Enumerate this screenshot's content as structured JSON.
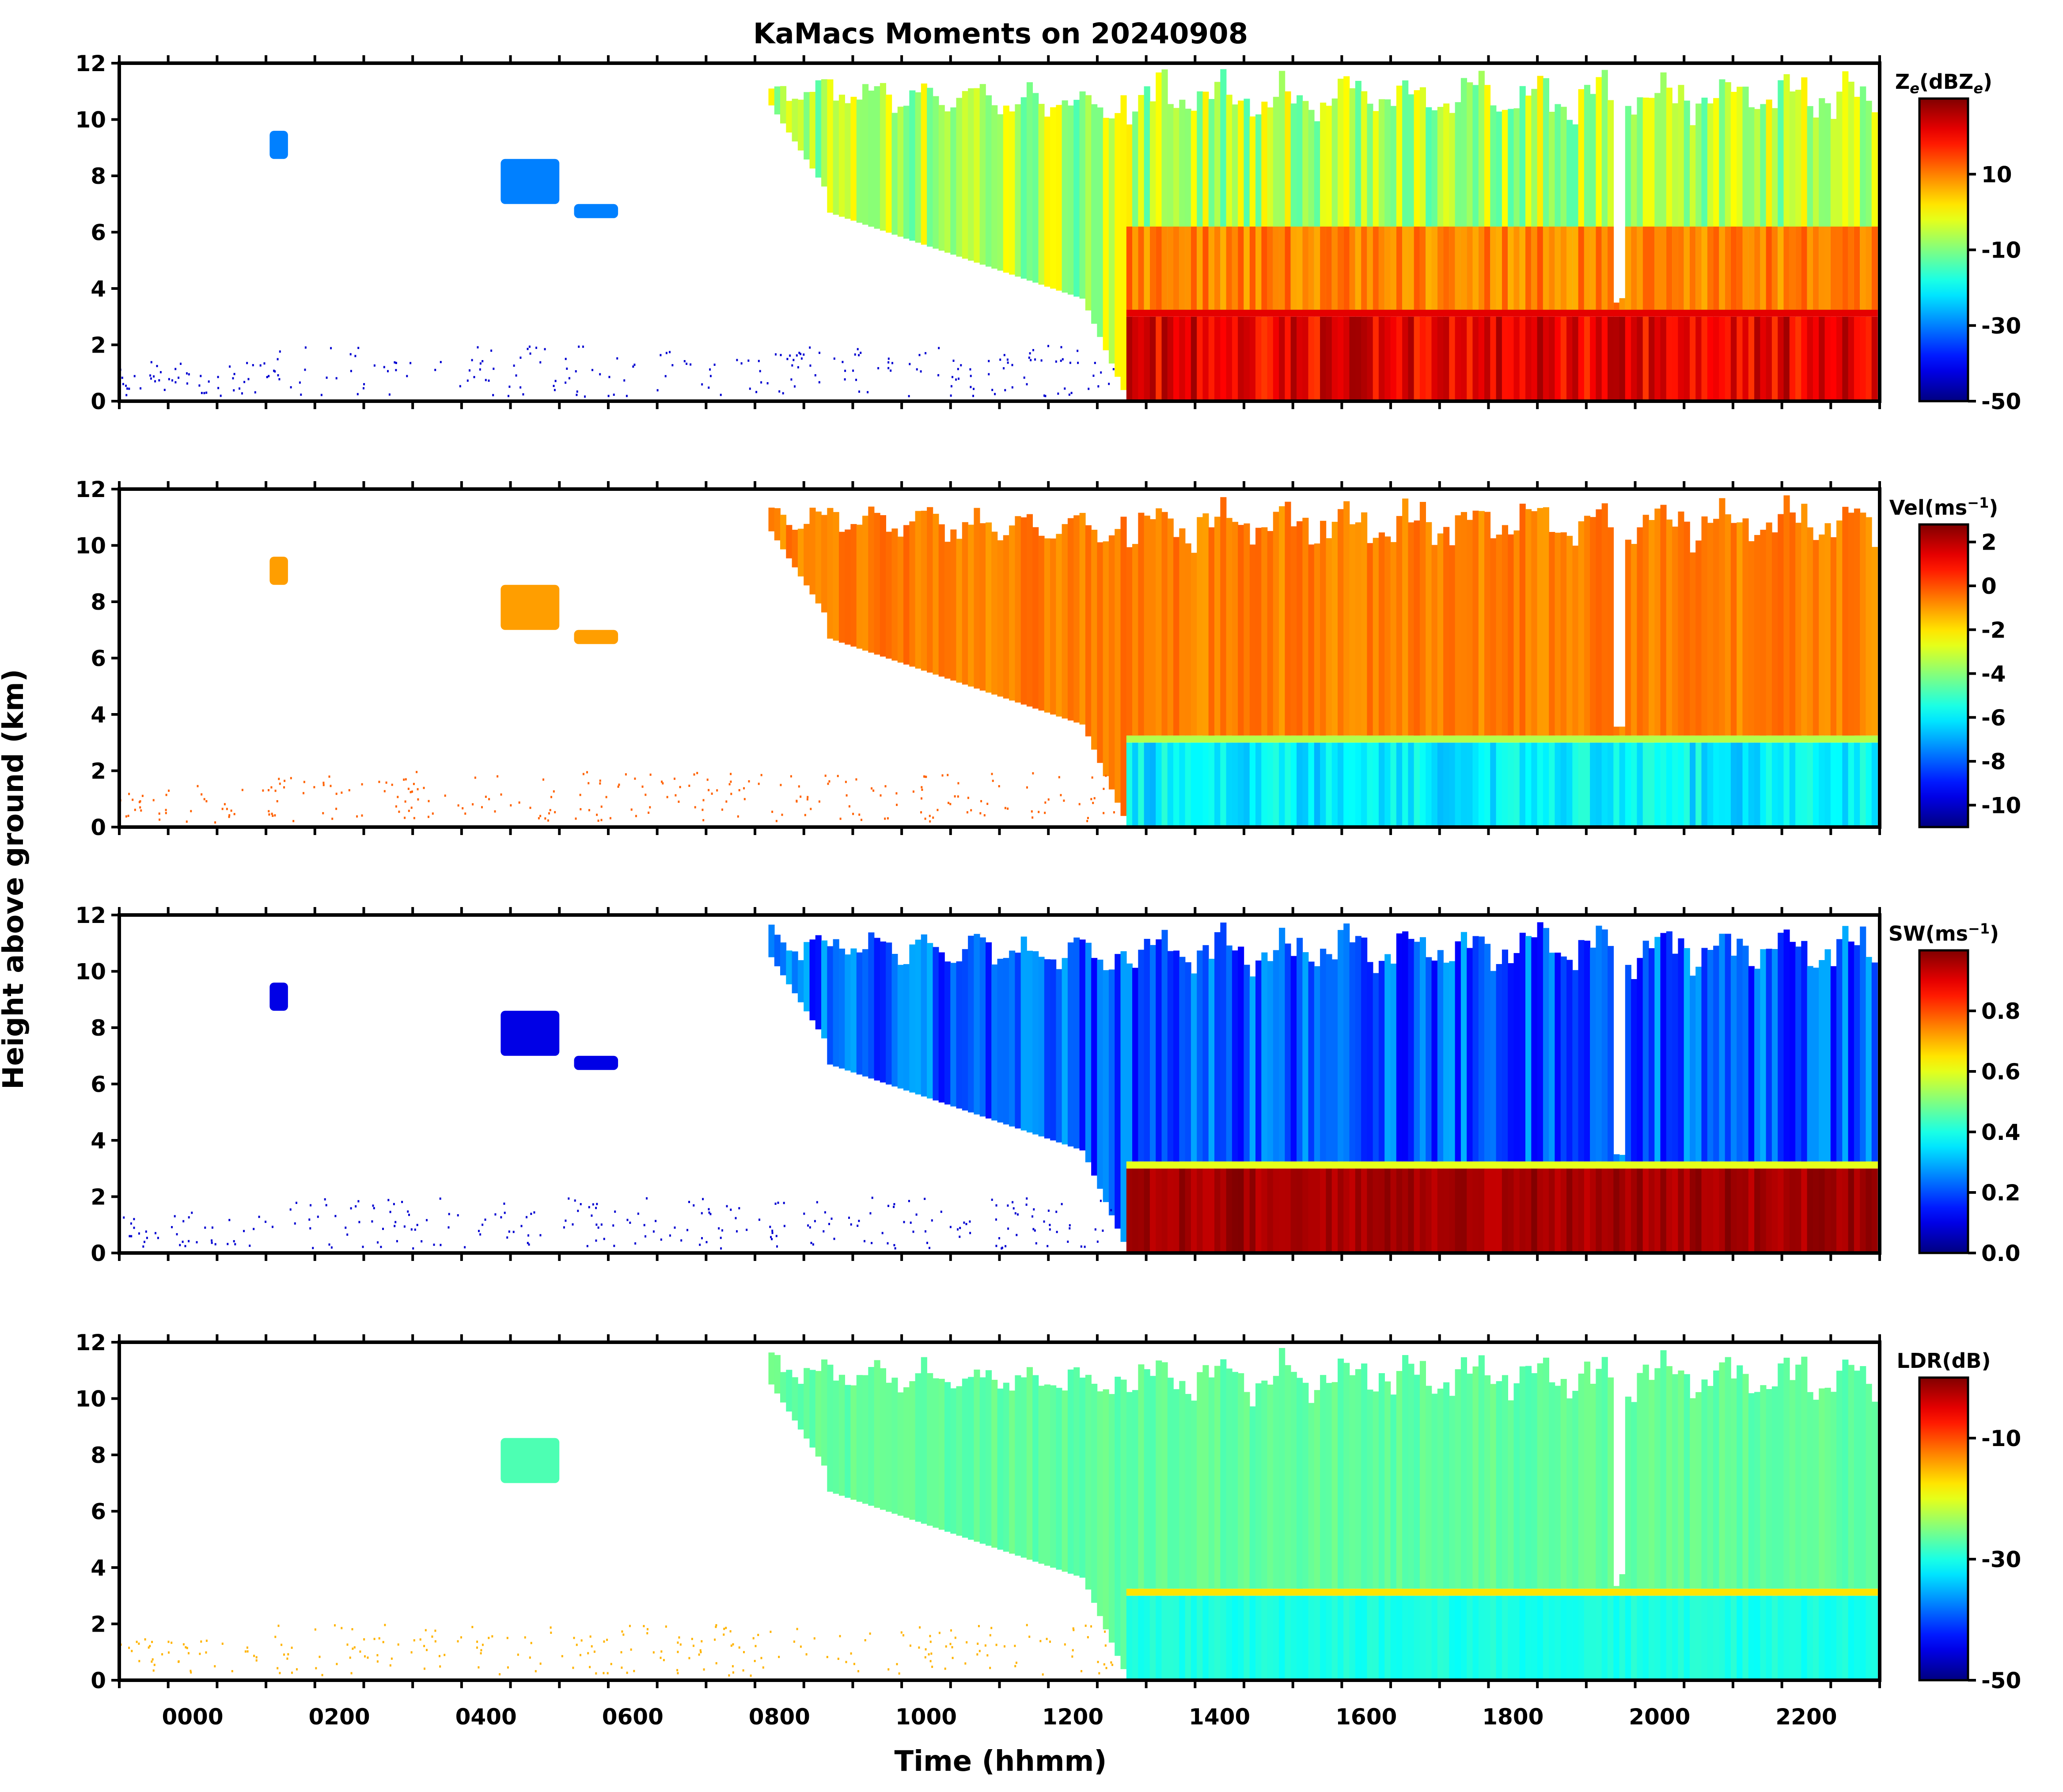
{
  "title": "KaMacs Moments on 20240908",
  "shared_ylabel": "Height above ground (km)",
  "xlabel": "Time (hhmm)",
  "chart_data": [
    {
      "type": "heatmap",
      "panel": "reflectivity",
      "colorbar_label": "Ze(dBZe)",
      "colorbar_label_main": "Z",
      "colorbar_label_sub": "e",
      "colorbar_label_rest": "(dBZ",
      "colorbar_label_sub2": "e",
      "colorbar_label_end": ")",
      "vmin": -50,
      "vmax": 30,
      "cbar_ticks": [
        10,
        -10,
        -30,
        -50
      ],
      "cbar_tick_labels": [
        "10",
        "-10",
        "-30",
        "-50"
      ],
      "ylim": [
        0,
        12
      ],
      "yticks": [
        0,
        2,
        4,
        6,
        8,
        10,
        12
      ],
      "ytick_labels": [
        "0",
        "2",
        "4",
        "6",
        "8",
        "10",
        "12"
      ],
      "features": {
        "melting_layer_km": 3.0,
        "cloud_top_km": 11,
        "rain_onset_hhmm": "1245"
      }
    },
    {
      "type": "heatmap",
      "panel": "velocity",
      "colorbar_label": "Vel(ms-1)",
      "colorbar_label_main": "Vel(ms",
      "colorbar_label_sup": "−1",
      "colorbar_label_end": ")",
      "vmin": -11,
      "vmax": 2.8,
      "cbar_ticks": [
        2,
        0,
        -2,
        -4,
        -6,
        -8,
        -10
      ],
      "cbar_tick_labels": [
        "2",
        "0",
        "-2",
        "-4",
        "-6",
        "-8",
        "-10"
      ],
      "ylim": [
        0,
        12
      ],
      "yticks": [
        0,
        2,
        4,
        6,
        8,
        10,
        12
      ],
      "ytick_labels": [
        "0",
        "2",
        "4",
        "6",
        "8",
        "10",
        "12"
      ],
      "features": {
        "ice_velocity": 0.3,
        "rain_velocity": -6.5
      }
    },
    {
      "type": "heatmap",
      "panel": "spectrum_width",
      "colorbar_label": "SW(ms-1)",
      "colorbar_label_main": "SW(ms",
      "colorbar_label_sup": "−1",
      "colorbar_label_end": ")",
      "vmin": 0,
      "vmax": 1.0,
      "cbar_ticks": [
        0.8,
        0.6,
        0.4,
        0.2,
        0.0
      ],
      "cbar_tick_labels": [
        "0.8",
        "0.6",
        "0.4",
        "0.2",
        "0.0"
      ],
      "ylim": [
        0,
        12
      ],
      "yticks": [
        0,
        2,
        4,
        6,
        8,
        10,
        12
      ],
      "ytick_labels": [
        "0",
        "2",
        "4",
        "6",
        "8",
        "10",
        "12"
      ],
      "features": {
        "ice_sw": 0.15,
        "rain_sw": 1.0
      }
    },
    {
      "type": "heatmap",
      "panel": "ldr",
      "colorbar_label": "LDR(dB)",
      "colorbar_label_main": "LDR(dB)",
      "vmin": -50,
      "vmax": 0,
      "cbar_ticks": [
        -10,
        -30,
        -50
      ],
      "cbar_tick_labels": [
        "-10",
        "-30",
        "-50"
      ],
      "ylim": [
        0,
        12
      ],
      "yticks": [
        0,
        2,
        4,
        6,
        8,
        10,
        12
      ],
      "ytick_labels": [
        "0",
        "2",
        "4",
        "6",
        "8",
        "10",
        "12"
      ],
      "features": {
        "ice_ldr": -27,
        "bright_band_ldr": -15,
        "rain_ldr": -32
      }
    }
  ],
  "xaxis": {
    "start_hhmm": "-0100",
    "end_hhmm": "2300",
    "major_ticks": [
      "0000",
      "0200",
      "0400",
      "0600",
      "0800",
      "1000",
      "1200",
      "1400",
      "1600",
      "1800",
      "2000",
      "2200"
    ],
    "tick_hours": [
      0,
      2,
      4,
      6,
      8,
      10,
      12,
      14,
      16,
      18,
      20,
      22
    ],
    "minor_tick_step_minutes": 40,
    "xlim_hours": [
      -1,
      23
    ]
  }
}
